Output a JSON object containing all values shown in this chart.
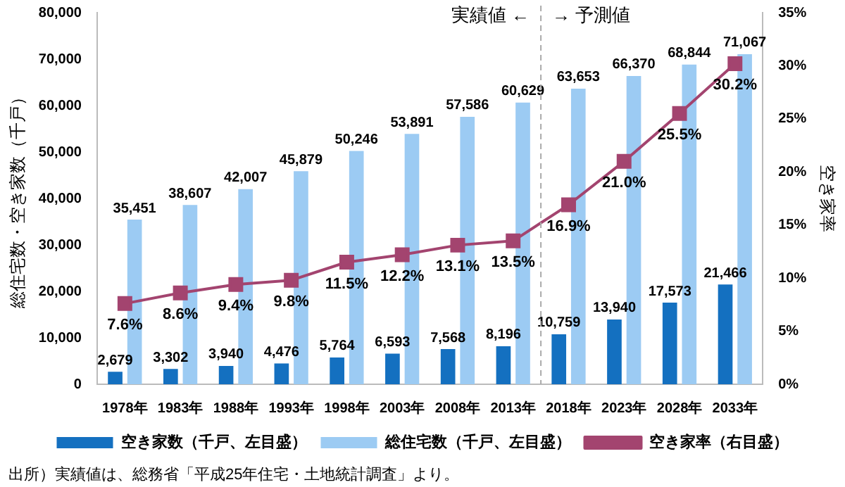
{
  "chart_data": {
    "type": "bar",
    "ylabel": "総住宅数・空き家数（千戸）",
    "y2label": "空き家率",
    "categories": [
      "1978年",
      "1983年",
      "1988年",
      "1993年",
      "1998年",
      "2003年",
      "2008年",
      "2013年",
      "2018年",
      "2023年",
      "2028年",
      "2033年"
    ],
    "series": [
      {
        "name": "空き家数（千戸、左目盛）",
        "color": "#1470c0",
        "values": [
          2679,
          3302,
          3940,
          4476,
          5764,
          6593,
          7568,
          8196,
          10759,
          13940,
          17573,
          21466
        ],
        "value_labels": [
          "2,679",
          "3,302",
          "3,940",
          "4,476",
          "5,764",
          "6,593",
          "7,568",
          "8,196",
          "10,759",
          "13,940",
          "17,573",
          "21,466"
        ]
      },
      {
        "name": "総住宅数（千戸、左目盛）",
        "color": "#9ccbf3",
        "values": [
          35451,
          38607,
          42007,
          45879,
          50246,
          53891,
          57586,
          60629,
          63653,
          66370,
          68844,
          71067
        ],
        "value_labels": [
          "35,451",
          "38,607",
          "42,007",
          "45,879",
          "50,246",
          "53,891",
          "57,586",
          "60,629",
          "63,653",
          "66,370",
          "68,844",
          "71,067"
        ]
      },
      {
        "name": "空き家率（右目盛）",
        "type": "line",
        "axis": "y2",
        "color": "#a3446f",
        "marker": "square",
        "values": [
          7.6,
          8.6,
          9.4,
          9.8,
          11.5,
          12.2,
          13.1,
          13.5,
          16.9,
          21.0,
          25.5,
          30.2
        ],
        "value_labels": [
          "7.6%",
          "8.6%",
          "9.4%",
          "9.8%",
          "11.5%",
          "12.2%",
          "13.1%",
          "13.5%",
          "16.9%",
          "21.0%",
          "25.5%",
          "30.2%"
        ]
      }
    ],
    "ylim": [
      0,
      80000
    ],
    "yticks": [
      0,
      {
        "value": 10000,
        "label": "10,000"
      },
      {
        "value": 20000,
        "label": "20,000"
      },
      {
        "value": 30000,
        "label": "30,000"
      },
      {
        "value": 40000,
        "label": "40,000"
      },
      {
        "value": 50000,
        "label": "50,000"
      },
      {
        "value": 60000,
        "label": "60,000"
      },
      {
        "value": 70000,
        "label": "70,000"
      },
      {
        "value": 80000,
        "label": "80,000"
      }
    ],
    "y2lim": [
      0,
      35
    ],
    "y2ticks": [
      {
        "value": 0,
        "label": "0%"
      },
      {
        "value": 5,
        "label": "5%"
      },
      {
        "value": 10,
        "label": "10%"
      },
      {
        "value": 15,
        "label": "15%"
      },
      {
        "value": 20,
        "label": "20%"
      },
      {
        "value": 25,
        "label": "25%"
      },
      {
        "value": 30,
        "label": "30%"
      },
      {
        "value": 35,
        "label": "35%"
      }
    ],
    "annotations": [
      "実績値 ←",
      "→ 予測値",
      "出所）実績値は、総務省「平成25年住宅・土地統計調査」より。"
    ],
    "grid": false,
    "legend": "bottom"
  }
}
